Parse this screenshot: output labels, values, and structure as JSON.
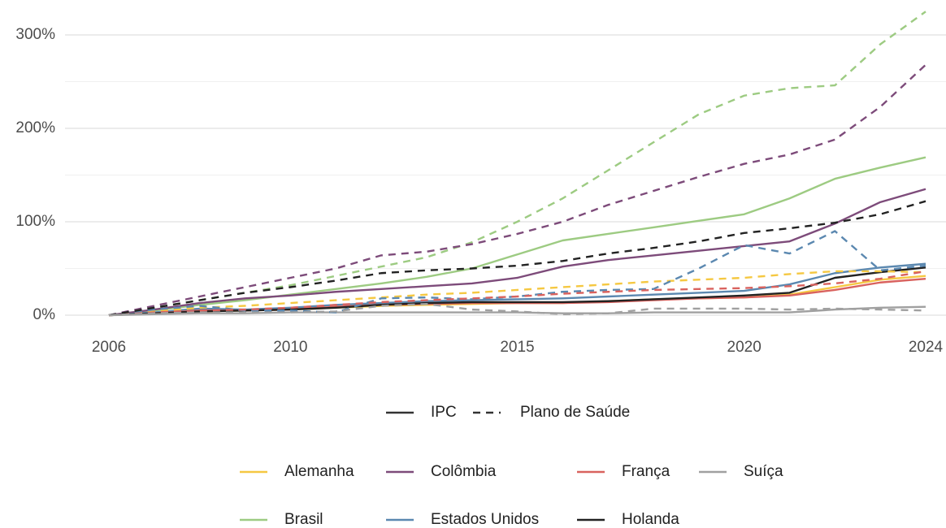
{
  "chart_data": {
    "type": "line",
    "x": [
      2006,
      2007,
      2008,
      2009,
      2010,
      2011,
      2012,
      2013,
      2014,
      2015,
      2016,
      2017,
      2018,
      2019,
      2020,
      2021,
      2022,
      2023,
      2024
    ],
    "xlim": [
      2006,
      2024
    ],
    "xticks": [
      2006,
      2010,
      2015,
      2020,
      2024
    ],
    "ylim": [
      -5,
      330
    ],
    "yticks": [
      {
        "value": 0,
        "label": "0%"
      },
      {
        "value": 100,
        "label": "100%"
      },
      {
        "value": 200,
        "label": "200%"
      },
      {
        "value": 300,
        "label": "300%"
      }
    ],
    "minor_yticks": [
      50,
      150,
      250
    ],
    "grid": true,
    "linetypes": [
      {
        "name": "IPC",
        "dash": "solid"
      },
      {
        "name": "Plano de Saúde",
        "dash": "dashed"
      }
    ],
    "series": [
      {
        "name": "Alemanha",
        "color": "#f5c842",
        "lines": [
          [
            0,
            2,
            4,
            5,
            6,
            8,
            10,
            11,
            12,
            13,
            13,
            15,
            17,
            18,
            19,
            22,
            30,
            38,
            42
          ],
          [
            0,
            4,
            8,
            10,
            13,
            16,
            19,
            22,
            24,
            27,
            30,
            33,
            36,
            38,
            40,
            44,
            47,
            47,
            46
          ]
        ]
      },
      {
        "name": "Brasil",
        "color": "#9dcb82",
        "lines": [
          [
            0,
            5,
            11,
            16,
            22,
            28,
            34,
            41,
            50,
            65,
            80,
            87,
            94,
            101,
            108,
            125,
            146,
            158,
            169
          ],
          [
            0,
            8,
            16,
            24,
            32,
            42,
            52,
            62,
            78,
            100,
            125,
            155,
            185,
            215,
            235,
            243,
            246,
            290,
            325
          ]
        ]
      },
      {
        "name": "Colômbia",
        "color": "#7d4b7a",
        "lines": [
          [
            0,
            6,
            13,
            18,
            21,
            25,
            28,
            31,
            34,
            40,
            52,
            59,
            64,
            69,
            74,
            79,
            98,
            121,
            135
          ],
          [
            0,
            10,
            20,
            30,
            40,
            50,
            64,
            68,
            76,
            87,
            100,
            118,
            133,
            148,
            162,
            172,
            188,
            223,
            268
          ]
        ]
      },
      {
        "name": "Estados Unidos",
        "color": "#5b88b0",
        "lines": [
          [
            0,
            3,
            7,
            6,
            8,
            11,
            13,
            15,
            16,
            17,
            18,
            20,
            22,
            24,
            26,
            33,
            45,
            51,
            55
          ],
          [
            0,
            6,
            10,
            5,
            5,
            3,
            18,
            19,
            17,
            20,
            25,
            27,
            28,
            50,
            75,
            66,
            90,
            48,
            53
          ]
        ]
      },
      {
        "name": "França",
        "color": "#d9625e",
        "lines": [
          [
            0,
            2,
            5,
            5,
            6,
            9,
            11,
            12,
            13,
            13,
            13,
            14,
            16,
            18,
            19,
            21,
            27,
            35,
            39
          ],
          [
            0,
            3,
            5,
            6,
            8,
            11,
            14,
            16,
            18,
            20,
            23,
            25,
            27,
            28,
            29,
            31,
            34,
            39,
            47
          ]
        ]
      },
      {
        "name": "Holanda",
        "color": "#222222",
        "lines": [
          [
            0,
            2,
            4,
            5,
            6,
            8,
            11,
            13,
            14,
            14,
            14,
            15,
            17,
            19,
            21,
            24,
            40,
            46,
            51
          ],
          [
            0,
            8,
            16,
            24,
            30,
            37,
            45,
            48,
            50,
            53,
            58,
            66,
            72,
            79,
            88,
            93,
            99,
            108,
            122
          ]
        ]
      },
      {
        "name": "Suíça",
        "color": "#a0a0a0",
        "lines": [
          [
            0,
            1,
            2,
            2,
            3,
            3,
            3,
            3,
            3,
            3,
            2,
            2,
            3,
            3,
            3,
            3,
            6,
            8,
            9
          ],
          [
            0,
            2,
            3,
            3,
            3,
            4,
            10,
            12,
            6,
            4,
            1,
            2,
            7,
            7,
            7,
            6,
            7,
            6,
            5
          ]
        ]
      }
    ]
  }
}
